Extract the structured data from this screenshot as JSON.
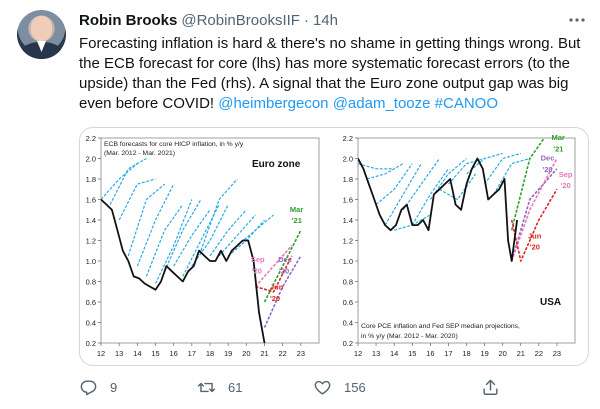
{
  "tweet": {
    "author_name": "Robin Brooks",
    "author_handle": "@RobinBrooksIIF",
    "separator": "·",
    "time": "14h",
    "text_lines": [
      [
        {
          "t": "Forecasting inflation is hard & there's no shame in getting things wrong. But"
        }
      ],
      [
        {
          "t": "the ECB forecast for core (lhs) has more systematic forecast errors (to the"
        }
      ],
      [
        {
          "t": "upside) than the Fed (rhs). A signal that the Euro zone output gap was big"
        }
      ],
      [
        {
          "t": "even before COVID! "
        },
        {
          "t": "@heimbergecon",
          "link": true
        },
        {
          "t": " "
        },
        {
          "t": "@adam_tooze",
          "link": true
        },
        {
          "t": " "
        },
        {
          "t": "#CANOO",
          "link": true
        }
      ]
    ],
    "actions": {
      "reply_count": "9",
      "retweet_count": "61",
      "like_count": "156"
    },
    "icons": {
      "more": "more-icon",
      "reply": "reply-icon",
      "retweet": "retweet-icon",
      "like": "heart-icon",
      "share": "share-icon"
    },
    "colors": {
      "link": "#1d9bf0",
      "secondary_text": "#536471"
    }
  },
  "chart_data": [
    {
      "type": "line",
      "title": "ECB forecasts for core HICP inflation, in % y/y",
      "subtitle": "(Mar. 2012 - Mar. 2021)",
      "region_label": "Euro zone",
      "ylim": [
        0.2,
        2.2
      ],
      "yticks": [
        "2.2",
        "2.0",
        "1.8",
        "1.6",
        "1.4",
        "1.2",
        "1.0",
        "0.8",
        "0.6",
        "0.4",
        "0.2"
      ],
      "xticks": [
        "12",
        "13",
        "14",
        "15",
        "16",
        "17",
        "18",
        "19",
        "20",
        "21",
        "22",
        "23"
      ],
      "xlim": [
        12,
        24
      ],
      "annotations": [
        {
          "text": "Mar",
          "x": 22.4,
          "y": 1.48,
          "color": "#2ca02c"
        },
        {
          "text": "'21",
          "x": 22.5,
          "y": 1.37,
          "color": "#2ca02c"
        },
        {
          "text": "Sep",
          "x": 20.25,
          "y": 0.99,
          "color": "#e377c2"
        },
        {
          "text": "'20",
          "x": 20.3,
          "y": 0.88,
          "color": "#e377c2"
        },
        {
          "text": "Dec",
          "x": 21.75,
          "y": 0.99,
          "color": "#9467bd"
        },
        {
          "text": "'20",
          "x": 21.8,
          "y": 0.88,
          "color": "#9467bd"
        },
        {
          "text": "Jun",
          "x": 21.3,
          "y": 0.72,
          "color": "#d62728"
        },
        {
          "text": "'20",
          "x": 21.3,
          "y": 0.61,
          "color": "#d62728"
        }
      ],
      "actual": {
        "color": "#111111",
        "x": [
          12.0,
          12.3,
          12.6,
          12.9,
          13.2,
          13.5,
          13.8,
          14.1,
          14.4,
          14.7,
          15.0,
          15.3,
          15.6,
          15.9,
          16.2,
          16.5,
          16.8,
          17.1,
          17.4,
          17.7,
          18.0,
          18.3,
          18.6,
          18.9,
          19.2,
          19.5,
          19.8,
          20.1,
          20.4,
          20.7,
          21.0
        ],
        "y": [
          1.6,
          1.55,
          1.5,
          1.3,
          1.1,
          1.0,
          0.85,
          0.83,
          0.78,
          0.75,
          0.72,
          0.8,
          0.95,
          0.9,
          0.85,
          0.8,
          0.9,
          0.95,
          1.1,
          1.05,
          1.0,
          1.0,
          1.1,
          1.0,
          1.1,
          1.15,
          1.2,
          1.2,
          1.0,
          0.5,
          0.2
        ]
      },
      "forecasts": {
        "color": "#29abe2",
        "lines": [
          {
            "x": [
              12.0,
              13.0,
              14.0
            ],
            "y": [
              1.6,
              1.8,
              1.95
            ]
          },
          {
            "x": [
              12.5,
              13.5,
              14.5
            ],
            "y": [
              1.55,
              1.9,
              2.0
            ]
          },
          {
            "x": [
              13.0,
              14.0,
              15.0
            ],
            "y": [
              1.4,
              1.75,
              1.8
            ]
          },
          {
            "x": [
              13.5,
              14.5,
              15.5
            ],
            "y": [
              1.05,
              1.6,
              1.75
            ]
          },
          {
            "x": [
              14.0,
              15.0,
              16.0
            ],
            "y": [
              0.95,
              1.4,
              1.75
            ]
          },
          {
            "x": [
              14.5,
              15.5,
              16.5
            ],
            "y": [
              0.85,
              1.3,
              1.55
            ]
          },
          {
            "x": [
              15.0,
              16.0,
              17.0
            ],
            "y": [
              0.78,
              1.15,
              1.6
            ]
          },
          {
            "x": [
              15.5,
              16.5,
              17.5
            ],
            "y": [
              0.9,
              1.3,
              1.6
            ]
          },
          {
            "x": [
              16.0,
              17.0,
              18.0
            ],
            "y": [
              0.95,
              1.25,
              1.5
            ]
          },
          {
            "x": [
              16.5,
              17.5,
              18.5
            ],
            "y": [
              0.85,
              1.2,
              1.55
            ]
          },
          {
            "x": [
              17.0,
              18.0,
              19.0
            ],
            "y": [
              0.95,
              1.2,
              1.55
            ]
          },
          {
            "x": [
              17.5,
              18.5,
              19.5
            ],
            "y": [
              1.1,
              1.6,
              1.8
            ]
          },
          {
            "x": [
              18.0,
              19.0,
              20.0
            ],
            "y": [
              1.05,
              1.3,
              1.5
            ]
          },
          {
            "x": [
              18.5,
              19.5,
              20.5
            ],
            "y": [
              1.05,
              1.25,
              1.45
            ]
          },
          {
            "x": [
              19.0,
              20.0,
              21.0
            ],
            "y": [
              1.05,
              1.2,
              1.4
            ]
          },
          {
            "x": [
              19.5,
              20.5,
              21.5
            ],
            "y": [
              1.15,
              1.3,
              1.45
            ]
          }
        ]
      },
      "covid_forecasts": [
        {
          "name": "Mar '21",
          "color": "#2ca02c",
          "x": [
            21.0,
            22.0,
            23.0
          ],
          "y": [
            0.6,
            0.95,
            1.3
          ]
        },
        {
          "name": "Sep '20",
          "color": "#e377c2",
          "x": [
            20.5,
            21.5,
            22.5
          ],
          "y": [
            0.75,
            0.95,
            1.15
          ]
        },
        {
          "name": "Dec '20",
          "color": "#9467bd",
          "x": [
            21.0,
            22.0,
            23.0
          ],
          "y": [
            0.35,
            0.75,
            1.05
          ]
        },
        {
          "name": "Jun '20",
          "color": "#d62728",
          "x": [
            20.5,
            21.5,
            22.5
          ],
          "y": [
            0.75,
            0.7,
            1.05
          ]
        }
      ]
    },
    {
      "type": "line",
      "title": "Core PCE inflation and Fed SEP median projections,",
      "subtitle": "in % y/y (Mar. 2012 - Mar. 2020)",
      "region_label": "USA",
      "ylim": [
        0.2,
        2.2
      ],
      "yticks": [
        "2.2",
        "2.0",
        "1.8",
        "1.6",
        "1.4",
        "1.2",
        "1.0",
        "0.8",
        "0.6",
        "0.4",
        "0.2"
      ],
      "xticks": [
        "12",
        "13",
        "14",
        "15",
        "16",
        "17",
        "18",
        "19",
        "20",
        "21",
        "22",
        "23"
      ],
      "xlim": [
        12,
        24
      ],
      "annotations": [
        {
          "text": "Mar",
          "x": 22.7,
          "y": 2.18,
          "color": "#2ca02c"
        },
        {
          "text": "'21",
          "x": 22.8,
          "y": 2.07,
          "color": "#2ca02c"
        },
        {
          "text": "Dec",
          "x": 22.1,
          "y": 1.98,
          "color": "#9467bd"
        },
        {
          "text": "'20",
          "x": 22.2,
          "y": 1.87,
          "color": "#9467bd"
        },
        {
          "text": "Sep",
          "x": 23.1,
          "y": 1.82,
          "color": "#e377c2"
        },
        {
          "text": "'20",
          "x": 23.2,
          "y": 1.71,
          "color": "#e377c2"
        },
        {
          "text": "Jun",
          "x": 21.4,
          "y": 1.22,
          "color": "#d62728"
        },
        {
          "text": "'20",
          "x": 21.5,
          "y": 1.11,
          "color": "#d62728"
        }
      ],
      "actual": {
        "color": "#111111",
        "x": [
          12.0,
          12.3,
          12.6,
          12.9,
          13.2,
          13.5,
          13.8,
          14.1,
          14.4,
          14.7,
          15.0,
          15.3,
          15.6,
          15.9,
          16.2,
          16.5,
          16.8,
          17.1,
          17.4,
          17.7,
          18.0,
          18.3,
          18.6,
          18.9,
          19.2,
          19.5,
          19.8,
          20.1,
          20.3,
          20.5,
          20.8
        ],
        "y": [
          2.0,
          1.9,
          1.75,
          1.6,
          1.45,
          1.35,
          1.3,
          1.35,
          1.5,
          1.55,
          1.35,
          1.35,
          1.4,
          1.3,
          1.65,
          1.7,
          1.75,
          1.8,
          1.55,
          1.5,
          1.75,
          1.9,
          2.0,
          1.9,
          1.6,
          1.65,
          1.7,
          1.8,
          1.2,
          1.0,
          1.4
        ]
      },
      "forecasts": {
        "color": "#29abe2",
        "lines": [
          {
            "x": [
              12.0,
              13.0,
              14.0
            ],
            "y": [
              1.95,
              1.9,
              1.9
            ]
          },
          {
            "x": [
              12.5,
              13.5,
              14.5
            ],
            "y": [
              1.8,
              1.85,
              1.95
            ]
          },
          {
            "x": [
              13.0,
              14.0,
              15.0
            ],
            "y": [
              1.55,
              1.7,
              1.95
            ]
          },
          {
            "x": [
              13.5,
              14.5,
              15.5
            ],
            "y": [
              1.35,
              1.65,
              1.95
            ]
          },
          {
            "x": [
              14.5,
              15.5,
              16.5
            ],
            "y": [
              1.5,
              1.75,
              2.0
            ]
          },
          {
            "x": [
              15.0,
              16.0,
              17.0
            ],
            "y": [
              1.35,
              1.65,
              1.9
            ]
          },
          {
            "x": [
              16.0,
              17.0,
              18.0
            ],
            "y": [
              1.6,
              1.85,
              2.0
            ]
          },
          {
            "x": [
              17.0,
              18.0,
              19.0
            ],
            "y": [
              1.75,
              1.95,
              2.0
            ]
          },
          {
            "x": [
              18.0,
              19.0,
              20.0
            ],
            "y": [
              1.85,
              2.0,
              2.05
            ]
          },
          {
            "x": [
              19.0,
              20.0,
              21.0
            ],
            "y": [
              1.75,
              2.0,
              2.05
            ]
          },
          {
            "x": [
              19.5,
              20.5,
              21.5
            ],
            "y": [
              1.65,
              1.95,
              2.0
            ]
          },
          {
            "x": [
              16.5,
              17.5,
              18.5
            ],
            "y": [
              1.7,
              1.6,
              1.85
            ]
          },
          {
            "x": [
              14.0,
              15.0,
              16.0
            ],
            "y": [
              1.3,
              1.35,
              1.45
            ]
          }
        ]
      },
      "covid_forecasts": [
        {
          "name": "Mar '21",
          "color": "#2ca02c",
          "x": [
            20.5,
            21.5,
            22.5
          ],
          "y": [
            1.3,
            2.0,
            2.25
          ]
        },
        {
          "name": "Dec '20",
          "color": "#9467bd",
          "x": [
            20.5,
            21.5,
            23.0
          ],
          "y": [
            1.0,
            1.6,
            1.9
          ]
        },
        {
          "name": "Sep '20",
          "color": "#e377c2",
          "x": [
            20.5,
            21.5,
            23.0
          ],
          "y": [
            1.0,
            1.5,
            2.0
          ]
        },
        {
          "name": "Jun '20",
          "color": "#d62728",
          "x": [
            20.5,
            21.0,
            22.0,
            23.0
          ],
          "y": [
            1.4,
            1.0,
            1.4,
            1.7
          ]
        }
      ]
    }
  ]
}
